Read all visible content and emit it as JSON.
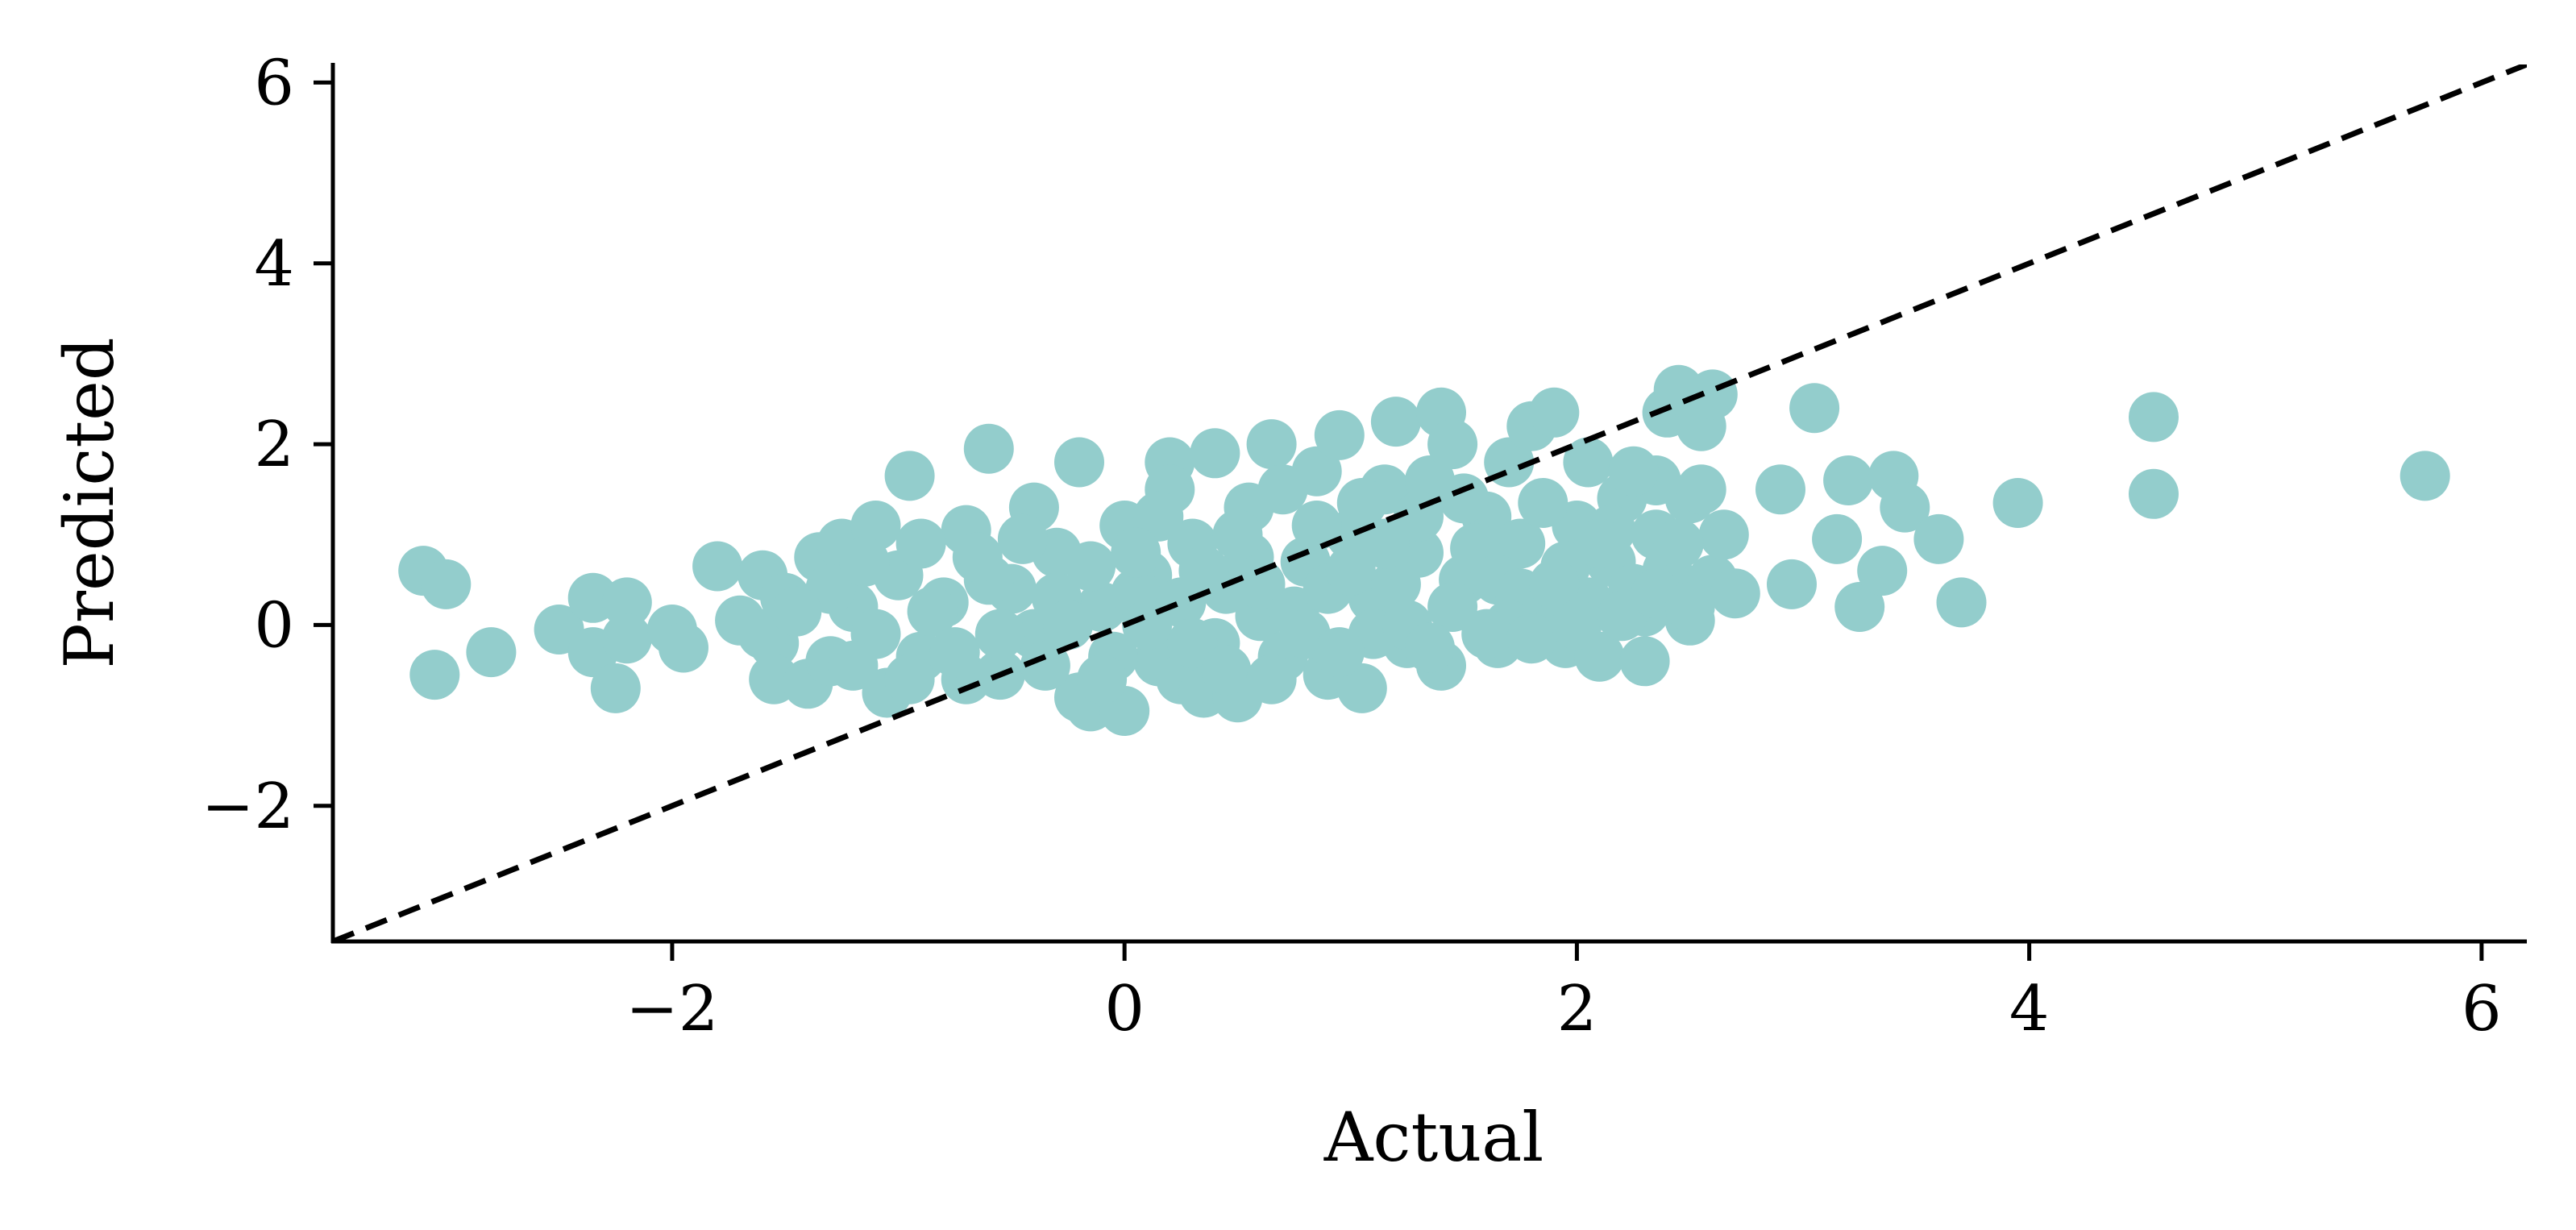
{
  "chart_data": {
    "type": "scatter",
    "title": "",
    "xlabel": "Actual",
    "ylabel": "Predicted",
    "xlim": [
      -3.5,
      6.2
    ],
    "ylim": [
      -3.5,
      6.2
    ],
    "xticks": [
      -2,
      0,
      2,
      4,
      6
    ],
    "yticks": [
      -2,
      0,
      2,
      4,
      6
    ],
    "xtick_labels": [
      "−2",
      "0",
      "2",
      "4",
      "6"
    ],
    "ytick_labels": [
      "−2",
      "0",
      "2",
      "4",
      "6"
    ],
    "grid": false,
    "point_color": "#93cdcc",
    "reference_line": {
      "style": "dashed",
      "color": "#000000",
      "from": [
        -3.5,
        -3.5
      ],
      "to": [
        6.2,
        6.2
      ]
    },
    "series": [
      {
        "points": [
          [
            -3.1,
            0.6
          ],
          [
            -3.0,
            0.45
          ],
          [
            -3.05,
            -0.55
          ],
          [
            -2.8,
            -0.3
          ],
          [
            -2.5,
            -0.05
          ],
          [
            -2.35,
            0.3
          ],
          [
            -2.2,
            0.25
          ],
          [
            -2.35,
            -0.3
          ],
          [
            -2.25,
            -0.7
          ],
          [
            -2.2,
            -0.15
          ],
          [
            -2.0,
            -0.05
          ],
          [
            -1.95,
            -0.25
          ],
          [
            -1.8,
            0.65
          ],
          [
            -1.6,
            0.55
          ],
          [
            -1.5,
            0.3
          ],
          [
            -1.7,
            0.05
          ],
          [
            -1.55,
            -0.2
          ],
          [
            -1.55,
            -0.6
          ],
          [
            -1.4,
            -0.65
          ],
          [
            -1.3,
            -0.4
          ],
          [
            -1.35,
            0.75
          ],
          [
            -1.25,
            0.9
          ],
          [
            -1.1,
            1.1
          ],
          [
            -1.0,
            0.55
          ],
          [
            -0.95,
            1.65
          ],
          [
            -1.2,
            0.2
          ],
          [
            -1.1,
            -0.1
          ],
          [
            -1.05,
            -0.75
          ],
          [
            -0.9,
            -0.35
          ],
          [
            -0.8,
            0.25
          ],
          [
            -0.7,
            1.05
          ],
          [
            -0.7,
            -0.6
          ],
          [
            -0.6,
            1.95
          ],
          [
            -0.55,
            -0.55
          ],
          [
            -0.5,
            0.4
          ],
          [
            -0.4,
            1.3
          ],
          [
            -0.3,
            0.8
          ],
          [
            -0.2,
            1.8
          ],
          [
            -0.2,
            -0.8
          ],
          [
            -0.15,
            -0.9
          ],
          [
            -0.1,
            0.2
          ],
          [
            0.0,
            -0.95
          ],
          [
            0.0,
            1.1
          ],
          [
            0.1,
            0.55
          ],
          [
            0.15,
            -0.4
          ],
          [
            0.2,
            1.8
          ],
          [
            0.2,
            1.5
          ],
          [
            0.25,
            -0.6
          ],
          [
            0.3,
            0.9
          ],
          [
            0.35,
            -0.75
          ],
          [
            0.4,
            1.9
          ],
          [
            0.45,
            0.4
          ],
          [
            0.5,
            -0.8
          ],
          [
            0.55,
            1.3
          ],
          [
            0.6,
            0.1
          ],
          [
            0.65,
            2.0
          ],
          [
            0.7,
            -0.35
          ],
          [
            0.8,
            0.7
          ],
          [
            0.85,
            1.7
          ],
          [
            0.9,
            -0.55
          ],
          [
            0.95,
            2.1
          ],
          [
            1.0,
            1.0
          ],
          [
            1.05,
            -0.7
          ],
          [
            1.1,
            0.3
          ],
          [
            1.15,
            1.5
          ],
          [
            1.2,
            2.25
          ],
          [
            1.25,
            -0.2
          ],
          [
            1.3,
            0.8
          ],
          [
            1.35,
            1.6
          ],
          [
            1.4,
            2.35
          ],
          [
            1.4,
            -0.45
          ],
          [
            1.45,
            2.0
          ],
          [
            1.5,
            0.5
          ],
          [
            1.6,
            1.2
          ],
          [
            1.65,
            -0.2
          ],
          [
            1.7,
            1.8
          ],
          [
            1.75,
            0.9
          ],
          [
            1.8,
            2.2
          ],
          [
            1.85,
            0.2
          ],
          [
            1.9,
            2.35
          ],
          [
            1.95,
            -0.2
          ],
          [
            2.0,
            1.1
          ],
          [
            2.05,
            1.8
          ],
          [
            2.1,
            -0.35
          ],
          [
            2.15,
            0.7
          ],
          [
            2.2,
            1.4
          ],
          [
            2.25,
            0.4
          ],
          [
            2.3,
            -0.4
          ],
          [
            2.35,
            1.6
          ],
          [
            2.4,
            0.6
          ],
          [
            2.4,
            2.35
          ],
          [
            2.45,
            2.6
          ],
          [
            2.5,
            1.4
          ],
          [
            2.5,
            0.05
          ],
          [
            2.55,
            2.2
          ],
          [
            2.6,
            2.55
          ],
          [
            2.6,
            0.5
          ],
          [
            2.65,
            1.0
          ],
          [
            2.7,
            0.35
          ],
          [
            2.9,
            1.5
          ],
          [
            2.95,
            0.45
          ],
          [
            3.05,
            2.4
          ],
          [
            3.15,
            0.95
          ],
          [
            3.2,
            1.6
          ],
          [
            3.25,
            0.2
          ],
          [
            3.35,
            0.6
          ],
          [
            3.4,
            1.65
          ],
          [
            3.45,
            1.3
          ],
          [
            3.6,
            0.95
          ],
          [
            3.7,
            0.25
          ],
          [
            3.95,
            1.35
          ],
          [
            4.55,
            2.3
          ],
          [
            4.55,
            1.45
          ],
          [
            5.75,
            1.65
          ],
          [
            -0.9,
            0.9
          ],
          [
            -0.6,
            0.5
          ],
          [
            -0.4,
            -0.1
          ],
          [
            -0.3,
            0.3
          ],
          [
            -0.15,
            0.65
          ],
          [
            0.05,
            0.35
          ],
          [
            0.1,
            0.0
          ],
          [
            0.25,
            0.25
          ],
          [
            0.35,
            0.6
          ],
          [
            0.4,
            -0.2
          ],
          [
            0.55,
            0.75
          ],
          [
            0.6,
            0.45
          ],
          [
            0.75,
            0.15
          ],
          [
            0.8,
            -0.1
          ],
          [
            0.9,
            0.4
          ],
          [
            1.0,
            0.6
          ],
          [
            1.1,
            -0.1
          ],
          [
            1.2,
            0.45
          ],
          [
            1.3,
            1.2
          ],
          [
            1.45,
            0.2
          ],
          [
            1.55,
            0.85
          ],
          [
            1.65,
            0.5
          ],
          [
            1.75,
            0.35
          ],
          [
            1.85,
            1.35
          ],
          [
            1.95,
            0.65
          ],
          [
            2.05,
            0.25
          ],
          [
            2.15,
            1.05
          ],
          [
            2.25,
            1.7
          ],
          [
            2.35,
            1.0
          ],
          [
            2.45,
            0.9
          ],
          [
            -1.3,
            0.4
          ],
          [
            -1.15,
            0.7
          ],
          [
            -0.85,
            0.15
          ],
          [
            -0.65,
            0.75
          ],
          [
            -0.45,
            0.95
          ],
          [
            -0.25,
            0.0
          ],
          [
            -0.05,
            -0.35
          ],
          [
            0.15,
            1.2
          ],
          [
            0.3,
            -0.2
          ],
          [
            0.5,
            1.0
          ],
          [
            0.7,
            1.5
          ],
          [
            0.85,
            1.1
          ],
          [
            1.05,
            1.35
          ],
          [
            1.25,
            0.0
          ],
          [
            1.5,
            1.4
          ],
          [
            1.7,
            0.0
          ],
          [
            1.9,
            0.45
          ],
          [
            2.1,
            0.9
          ],
          [
            2.3,
            0.15
          ],
          [
            2.55,
            1.5
          ],
          [
            -1.6,
            -0.1
          ],
          [
            -1.45,
            0.15
          ],
          [
            -1.2,
            -0.45
          ],
          [
            -0.95,
            -0.6
          ],
          [
            -0.75,
            -0.3
          ],
          [
            -0.55,
            -0.1
          ],
          [
            -0.35,
            -0.45
          ],
          [
            -0.1,
            -0.6
          ],
          [
            0.05,
            0.8
          ],
          [
            0.45,
            -0.5
          ],
          [
            0.65,
            -0.6
          ],
          [
            0.95,
            -0.3
          ],
          [
            1.15,
            0.9
          ],
          [
            1.35,
            -0.25
          ],
          [
            1.6,
            -0.1
          ],
          [
            1.8,
            -0.15
          ],
          [
            2.0,
            0.0
          ],
          [
            2.2,
            0.1
          ],
          [
            2.35,
            0.35
          ],
          [
            2.5,
            0.2
          ]
        ]
      }
    ]
  }
}
